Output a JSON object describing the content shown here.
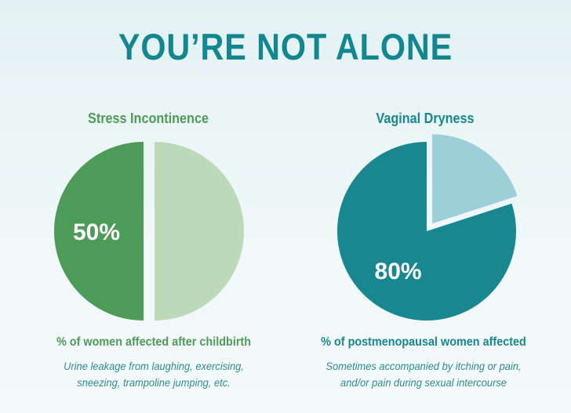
{
  "header": {
    "title": "YOU’RE NOT ALONE"
  },
  "colors": {
    "title": "#138790",
    "green_dark": "#4d9b58",
    "green_light": "#bcd9b9",
    "teal_dark": "#188790",
    "teal_light": "#9ccfd8"
  },
  "chart_data": [
    {
      "type": "pie",
      "title": "Stress Incontinence",
      "slices": [
        {
          "label": "50%",
          "value": 50,
          "color": "#4d9b58",
          "exploded": false
        },
        {
          "label": "",
          "value": 50,
          "color": "#bcd9b9",
          "exploded": true
        }
      ],
      "caption": "% of women affected after childbirth",
      "description": [
        "Urine leakage from laughing, exercising,",
        "sneezing, trampoline jumping, etc."
      ]
    },
    {
      "type": "pie",
      "title": "Vaginal Dryness",
      "slices": [
        {
          "label": "80%",
          "value": 80,
          "color": "#188790",
          "exploded": false
        },
        {
          "label": "",
          "value": 20,
          "color": "#9ccfd8",
          "exploded": true
        }
      ],
      "caption": "% of postmenopausal women affected",
      "description": [
        "Sometimes accompanied by itching or pain,",
        "and/or pain during sexual intercourse"
      ]
    }
  ]
}
